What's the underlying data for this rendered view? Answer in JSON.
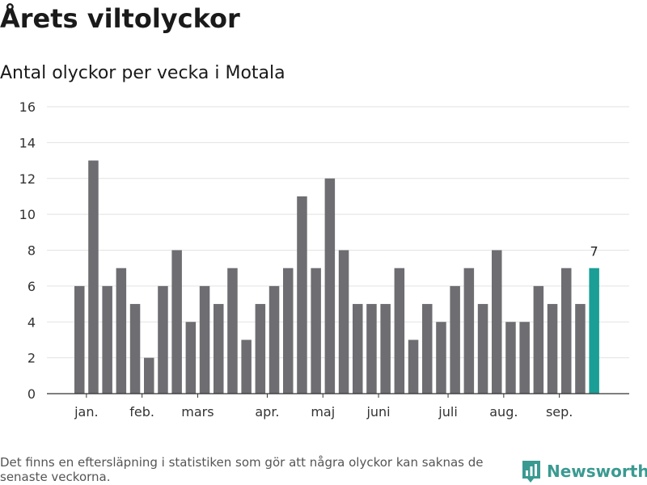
{
  "title": "Årets viltolyckor",
  "subtitle": "Antal olyckor per vecka i Motala",
  "footnote": "Det finns en eftersläpning i statistiken som gör att några olyckor kan saknas de senaste veckorna.",
  "logo": {
    "text": "Newsworthy",
    "icon": "newsworthy-chart-icon",
    "color": "#3a9a91"
  },
  "colors": {
    "bar": "#6d6d72",
    "highlight": "#1a9e96",
    "grid": "#e2e2e2",
    "axis": "#333333"
  },
  "chart_data": {
    "type": "bar",
    "title": "Antal olyckor per vecka i Motala",
    "xlabel": "",
    "ylabel": "",
    "ylim": [
      0,
      16
    ],
    "yticks": [
      0,
      2,
      4,
      6,
      8,
      10,
      12,
      14,
      16
    ],
    "values": [
      6,
      13,
      6,
      7,
      5,
      2,
      6,
      8,
      4,
      6,
      5,
      7,
      3,
      5,
      6,
      7,
      11,
      7,
      12,
      8,
      5,
      5,
      5,
      7,
      3,
      5,
      4,
      6,
      7,
      5,
      8,
      4,
      4,
      6,
      5,
      7,
      5,
      7
    ],
    "highlight_index": 37,
    "highlight_label": "7",
    "month_labels": [
      {
        "label": "jan.",
        "bar_index": 0.5
      },
      {
        "label": "feb.",
        "bar_index": 4.5
      },
      {
        "label": "mars",
        "bar_index": 8.5
      },
      {
        "label": "apr.",
        "bar_index": 13.5
      },
      {
        "label": "maj",
        "bar_index": 17.5
      },
      {
        "label": "juni",
        "bar_index": 21.5
      },
      {
        "label": "juli",
        "bar_index": 26.5
      },
      {
        "label": "aug.",
        "bar_index": 30.5
      },
      {
        "label": "sep.",
        "bar_index": 34.5
      }
    ]
  }
}
